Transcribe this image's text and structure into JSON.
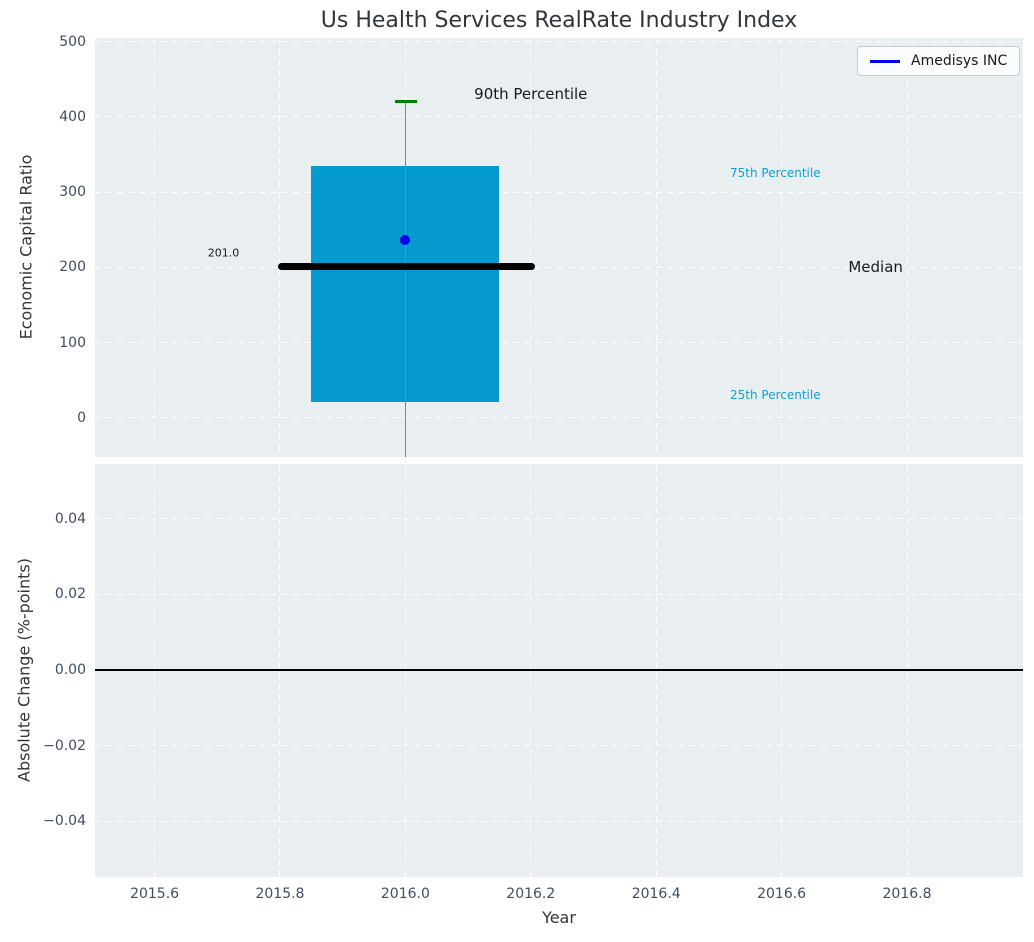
{
  "figure": {
    "title": "Us Health Services RealRate Industry Index",
    "background": "#ffffff",
    "axes_background": "#e9eef0"
  },
  "legend": {
    "label": "Amedisys INC",
    "line_color": "#0000ee",
    "position": "top-right"
  },
  "chart_data": [
    {
      "type": "boxplot",
      "subplot": "top",
      "title": "Us Health Services RealRate Industry Index",
      "ylabel": "Economic Capital Ratio",
      "x_center": 2016.0,
      "percentiles": {
        "p90": 420,
        "p75": 335,
        "median": 201,
        "p25": 21,
        "whisker_low_clipped": -52
      },
      "company": {
        "name": "Amedisys INC",
        "x": 2016.0,
        "value": 237
      },
      "median_value_label": "201.0",
      "box_x_range": [
        2015.85,
        2016.15
      ],
      "median_x_range": [
        2015.797,
        2016.207
      ],
      "cap_x_range": [
        2015.983,
        2016.018
      ],
      "xlim": [
        2015.505,
        2016.985
      ],
      "ylim": [
        -52,
        505
      ],
      "grid": true,
      "yticks": [
        {
          "v": 0,
          "label": "0"
        },
        {
          "v": 100,
          "label": "100"
        },
        {
          "v": 200,
          "label": "200"
        },
        {
          "v": 300,
          "label": "300"
        },
        {
          "v": 400,
          "label": "400"
        },
        {
          "v": 500,
          "label": "500"
        }
      ],
      "xticks": [
        {
          "v": 2015.6,
          "label": "2015.6"
        },
        {
          "v": 2015.8,
          "label": "2015.8"
        },
        {
          "v": 2016.0,
          "label": "2016.0"
        },
        {
          "v": 2016.2,
          "label": "2016.2"
        },
        {
          "v": 2016.4,
          "label": "2016.4"
        },
        {
          "v": 2016.6,
          "label": "2016.6"
        },
        {
          "v": 2016.8,
          "label": "2016.8"
        }
      ],
      "colors": {
        "box": "#049acd",
        "median_line": "#000000",
        "company_dot": "#0000ee",
        "whisker": "#858585",
        "cap": "#008000",
        "percentile_text": "#129fd7"
      },
      "annotations": [
        {
          "id": "p90-label",
          "text": "90th Percentile",
          "x": 2016.2,
          "y": 430,
          "color": "#1a1a1a",
          "size": 15
        },
        {
          "id": "p75-label",
          "text": "75th Percentile",
          "x": 2016.59,
          "y": 325,
          "color": "#129fd7",
          "size": 12
        },
        {
          "id": "median-label",
          "text": "Median",
          "x": 2016.75,
          "y": 201,
          "color": "#1a1a1a",
          "size": 15
        },
        {
          "id": "p25-label",
          "text": "25th Percentile",
          "x": 2016.59,
          "y": 31,
          "color": "#129fd7",
          "size": 12
        },
        {
          "id": "median-value",
          "text": "201.0",
          "x": 2015.71,
          "y": 219,
          "color": "#1a1a1a",
          "size": 11
        }
      ]
    },
    {
      "type": "line",
      "subplot": "bottom",
      "xlabel": "Year",
      "ylabel": "Absolute Change (%-points)",
      "series": [
        {
          "name": "Amedisys INC",
          "x": [],
          "y": []
        }
      ],
      "zero_line": 0.0,
      "zero_line_color": "#000000",
      "xlim": [
        2015.505,
        2016.985
      ],
      "ylim": [
        -0.0547,
        0.0544
      ],
      "grid": true,
      "yticks": [
        {
          "v": 0.04,
          "label": "0.04"
        },
        {
          "v": 0.02,
          "label": "0.02"
        },
        {
          "v": 0.0,
          "label": "0.00"
        },
        {
          "v": -0.02,
          "label": "−0.02"
        },
        {
          "v": -0.04,
          "label": "−0.04"
        }
      ],
      "xticks": [
        {
          "v": 2015.6,
          "label": "2015.6"
        },
        {
          "v": 2015.8,
          "label": "2015.8"
        },
        {
          "v": 2016.0,
          "label": "2016.0"
        },
        {
          "v": 2016.2,
          "label": "2016.2"
        },
        {
          "v": 2016.4,
          "label": "2016.4"
        },
        {
          "v": 2016.6,
          "label": "2016.6"
        },
        {
          "v": 2016.8,
          "label": "2016.8"
        }
      ]
    }
  ]
}
